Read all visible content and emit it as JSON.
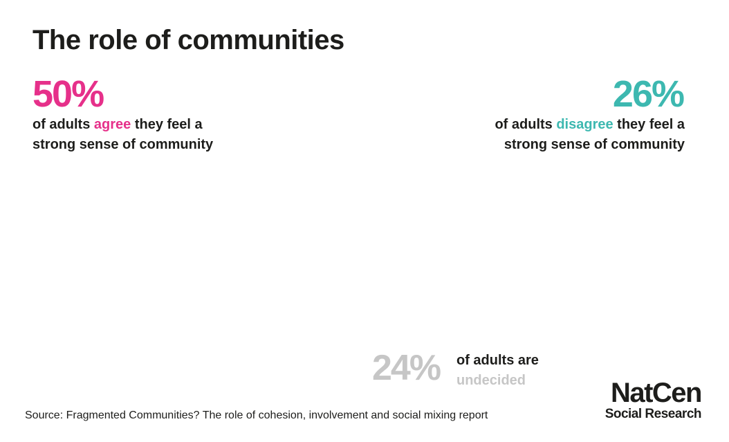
{
  "title": "The role of communities",
  "colors": {
    "agree": "#e6308a",
    "undecided": "#c6c6c6",
    "disagree": "#3db8b0",
    "text": "#1d1d1b"
  },
  "agree": {
    "percent": "50%",
    "line1_pre": "of adults ",
    "keyword": "agree",
    "line1_post": " they feel a",
    "line2": "strong sense of community"
  },
  "disagree": {
    "percent": "26%",
    "line1_pre": "of adults ",
    "keyword": "disagree",
    "line1_post": " they feel a",
    "line2": "strong sense of community"
  },
  "undecided": {
    "percent": "24%",
    "line1": "of adults are",
    "line2": "undecided"
  },
  "chart_data": {
    "type": "pictogram",
    "title": "The role of communities",
    "total_figures": 10,
    "series": [
      {
        "name": "agree",
        "value": 50,
        "color": "#e6308a"
      },
      {
        "name": "undecided",
        "value": 24,
        "color": "#c6c6c6"
      },
      {
        "name": "disagree",
        "value": 26,
        "color": "#3db8b0"
      }
    ]
  },
  "source": "Source: Fragmented Communities? The role of cohesion, involvement and social mixing report",
  "logo": {
    "main": "NatCen",
    "sub": "Social Research"
  }
}
